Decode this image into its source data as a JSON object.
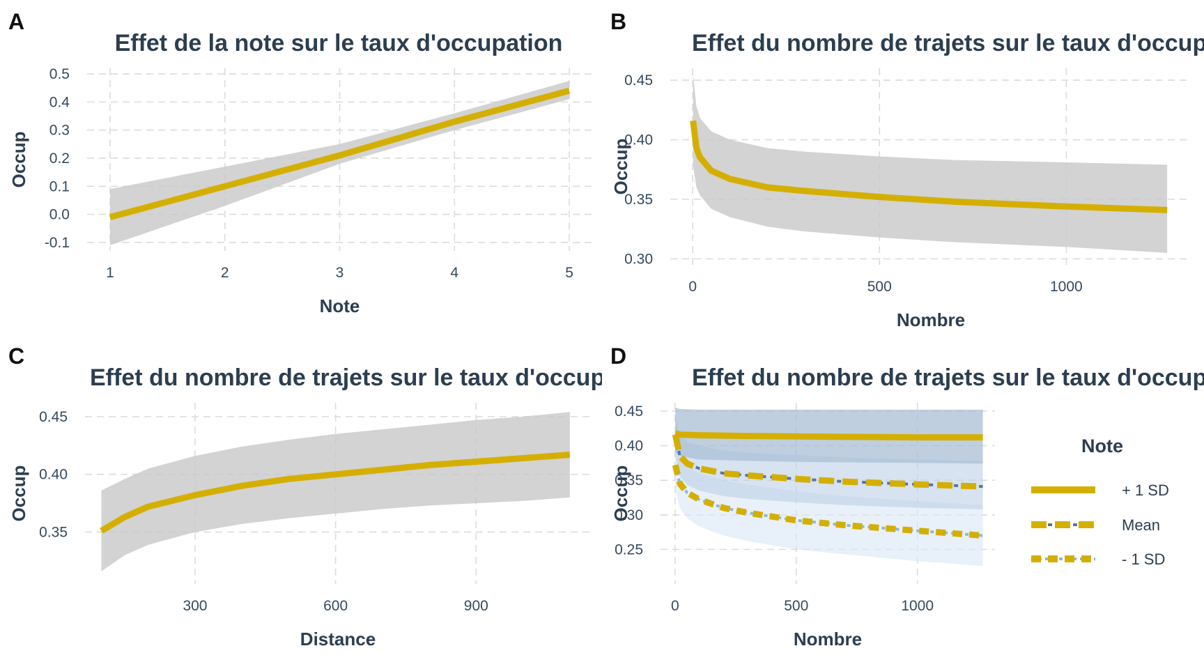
{
  "colors": {
    "line": "#d4af00",
    "ribbon": "#c8c8c8",
    "text": "#2c3e50",
    "ribbon_plus": "#a9bfd6",
    "ribbon_mean": "#bcd0e6",
    "ribbon_minus": "#d9e7f5",
    "inner_mean": "#4f76b3",
    "inner_minus": "#8fb6df"
  },
  "chart_data": [
    {
      "panel": "A",
      "type": "line",
      "title": "Effet de la note sur le taux d'occupation",
      "xlabel": "Note",
      "ylabel": "Occup",
      "xlim": [
        0.8,
        5.2
      ],
      "ylim": [
        -0.13,
        0.52
      ],
      "xticks": [
        1,
        2,
        3,
        4,
        5
      ],
      "yticks": [
        -0.1,
        0.0,
        0.1,
        0.2,
        0.3,
        0.4,
        0.5
      ],
      "ytick_labels": [
        "-0.1",
        "0.0",
        "0.1",
        "0.2",
        "0.3",
        "0.4",
        "0.5"
      ],
      "grid": true,
      "x": [
        1,
        2,
        3,
        4,
        5
      ],
      "y": [
        -0.01,
        0.1,
        0.21,
        0.33,
        0.44
      ],
      "ci_low": [
        -0.11,
        0.03,
        0.18,
        0.3,
        0.41
      ],
      "ci_high": [
        0.09,
        0.17,
        0.25,
        0.36,
        0.475
      ]
    },
    {
      "panel": "B",
      "type": "line",
      "title": "Effet du nombre de trajets sur le taux d'occupation",
      "xlabel": "Nombre",
      "ylabel": "Occup",
      "xlim": [
        -60,
        1335
      ],
      "ylim": [
        0.295,
        0.46
      ],
      "xticks": [
        0,
        500,
        1000
      ],
      "yticks": [
        0.3,
        0.35,
        0.4,
        0.45
      ],
      "ytick_labels": [
        "0.30",
        "0.35",
        "0.40",
        "0.45"
      ],
      "grid": true,
      "x": [
        1,
        10,
        20,
        50,
        100,
        200,
        300,
        500,
        700,
        1000,
        1270
      ],
      "y": [
        0.416,
        0.393,
        0.385,
        0.374,
        0.367,
        0.36,
        0.357,
        0.352,
        0.348,
        0.344,
        0.341
      ],
      "ci_low": [
        0.378,
        0.36,
        0.353,
        0.342,
        0.335,
        0.327,
        0.323,
        0.318,
        0.314,
        0.31,
        0.305
      ],
      "ci_high": [
        0.455,
        0.428,
        0.418,
        0.407,
        0.4,
        0.393,
        0.39,
        0.386,
        0.383,
        0.381,
        0.379
      ]
    },
    {
      "panel": "C",
      "type": "line",
      "title": "Effet du nombre de trajets sur le taux d'occupation",
      "xlabel": "Distance",
      "ylabel": "Occup",
      "xlim": [
        65,
        1145
      ],
      "ylim": [
        0.305,
        0.462
      ],
      "xticks": [
        300,
        600,
        900
      ],
      "yticks": [
        0.35,
        0.4,
        0.45
      ],
      "ytick_labels": [
        "0.35",
        "0.40",
        "0.45"
      ],
      "grid": true,
      "x": [
        100,
        150,
        200,
        300,
        400,
        500,
        600,
        700,
        800,
        900,
        1000,
        1100
      ],
      "y": [
        0.351,
        0.363,
        0.372,
        0.382,
        0.39,
        0.396,
        0.4,
        0.404,
        0.408,
        0.411,
        0.414,
        0.417
      ],
      "ci_low": [
        0.316,
        0.33,
        0.339,
        0.35,
        0.357,
        0.362,
        0.366,
        0.37,
        0.373,
        0.375,
        0.377,
        0.38
      ],
      "ci_high": [
        0.386,
        0.396,
        0.405,
        0.416,
        0.424,
        0.43,
        0.435,
        0.439,
        0.443,
        0.447,
        0.45,
        0.454
      ]
    },
    {
      "panel": "D",
      "type": "line",
      "title": "Effet du nombre de trajets sur le taux d'occupation",
      "xlabel": "Nombre",
      "ylabel": "Occup",
      "xlim": [
        -60,
        1320
      ],
      "ylim": [
        0.2,
        0.462
      ],
      "xticks": [
        0,
        500,
        1000
      ],
      "yticks": [
        0.25,
        0.3,
        0.35,
        0.4,
        0.45
      ],
      "ytick_labels": [
        "0.25",
        "0.30",
        "0.35",
        "0.40",
        "0.45"
      ],
      "grid": true,
      "legend_title": "Note",
      "legend_position": "right",
      "series": [
        {
          "name": "+ 1 SD",
          "x": [
            1,
            20,
            100,
            300,
            600,
            1000,
            1270
          ],
          "y": [
            0.418,
            0.416,
            0.415,
            0.414,
            0.413,
            0.412,
            0.412
          ],
          "ci_low": [
            0.39,
            0.385,
            0.38,
            0.378,
            0.376,
            0.375,
            0.374
          ],
          "ci_high": [
            0.455,
            0.453,
            0.452,
            0.452,
            0.452,
            0.452,
            0.452
          ]
        },
        {
          "name": "Mean",
          "x": [
            1,
            20,
            50,
            100,
            200,
            300,
            500,
            700,
            1000,
            1270
          ],
          "y": [
            0.416,
            0.385,
            0.374,
            0.367,
            0.36,
            0.357,
            0.352,
            0.348,
            0.344,
            0.341
          ],
          "ci_low": [
            0.385,
            0.355,
            0.343,
            0.335,
            0.327,
            0.323,
            0.318,
            0.314,
            0.31,
            0.308
          ],
          "ci_high": [
            0.445,
            0.415,
            0.406,
            0.4,
            0.393,
            0.39,
            0.386,
            0.383,
            0.38,
            0.378
          ]
        },
        {
          "name": "- 1 SD",
          "x": [
            1,
            20,
            50,
            100,
            200,
            300,
            500,
            700,
            1000,
            1270
          ],
          "y": [
            0.372,
            0.345,
            0.332,
            0.322,
            0.31,
            0.303,
            0.292,
            0.285,
            0.277,
            0.27
          ],
          "ci_low": [
            0.335,
            0.31,
            0.295,
            0.283,
            0.27,
            0.262,
            0.25,
            0.243,
            0.233,
            0.226
          ],
          "ci_high": [
            0.41,
            0.38,
            0.368,
            0.36,
            0.35,
            0.344,
            0.334,
            0.327,
            0.32,
            0.314
          ]
        }
      ]
    }
  ]
}
